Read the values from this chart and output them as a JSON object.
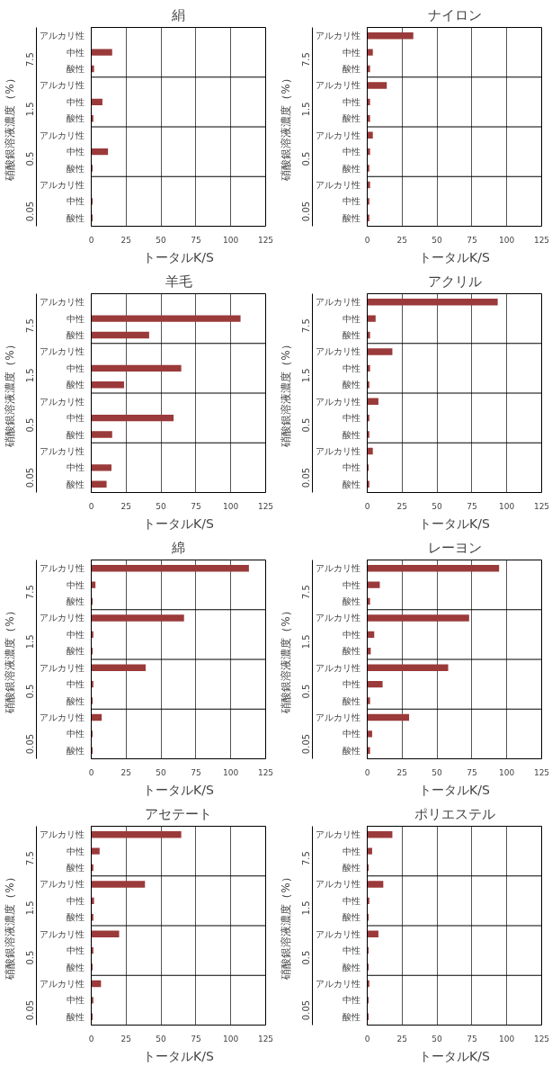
{
  "chart_data": [
    {
      "type": "bar",
      "orientation": "horizontal",
      "title": "絹",
      "xlabel": "トータルK/S",
      "ylabel": "硝酸銀溶液濃度（%）",
      "categories": [
        "アルカリ性",
        "中性",
        "酸性",
        "アルカリ性",
        "中性",
        "酸性",
        "アルカリ性",
        "中性",
        "酸性",
        "アルカリ性",
        "中性",
        "酸性"
      ],
      "annotations": [
        "7.5",
        "1.5",
        "0.5",
        "0.05"
      ],
      "color": "#9b3a3a",
      "values": [
        0,
        15,
        2,
        0,
        8,
        1.5,
        0,
        12,
        1,
        0,
        1,
        1
      ],
      "xlim": [
        0,
        125
      ],
      "xticks": [
        0,
        25,
        50,
        75,
        100,
        125
      ],
      "grid": "x"
    },
    {
      "type": "bar",
      "orientation": "horizontal",
      "title": "ナイロン",
      "xlabel": "トータルK/S",
      "ylabel": "硝酸銀溶液濃度（%）",
      "categories": [
        "アルカリ性",
        "中性",
        "酸性",
        "アルカリ性",
        "中性",
        "酸性",
        "アルカリ性",
        "中性",
        "酸性",
        "アルカリ性",
        "中性",
        "酸性"
      ],
      "annotations": [
        "7.5",
        "1.5",
        "0.5",
        "0.05"
      ],
      "color": "#9b3a3a",
      "values": [
        33,
        4,
        2,
        14,
        2,
        2,
        4,
        2,
        1.5,
        2,
        1.5,
        1.5
      ],
      "xlim": [
        0,
        125
      ],
      "xticks": [
        0,
        25,
        50,
        75,
        100,
        125
      ],
      "grid": "x"
    },
    {
      "type": "bar",
      "orientation": "horizontal",
      "title": "羊毛",
      "xlabel": "トータルK/S",
      "ylabel": "硝酸銀溶液濃度（%）",
      "categories": [
        "アルカリ性",
        "中性",
        "酸性",
        "アルカリ性",
        "中性",
        "酸性",
        "アルカリ性",
        "中性",
        "酸性",
        "アルカリ性",
        "中性",
        "酸性"
      ],
      "annotations": [
        "7.5",
        "1.5",
        "0.5",
        "0.05"
      ],
      "color": "#9b3a3a",
      "values": [
        0,
        107,
        41.5,
        0,
        64.5,
        23.5,
        0,
        59,
        15,
        0,
        14.5,
        11
      ],
      "xlim": [
        0,
        125
      ],
      "xticks": [
        0,
        25,
        50,
        75,
        100,
        125
      ],
      "grid": "x"
    },
    {
      "type": "bar",
      "orientation": "horizontal",
      "title": "アクリル",
      "xlabel": "トータルK/S",
      "ylabel": "硝酸銀溶液濃度（%）",
      "categories": [
        "アルカリ性",
        "中性",
        "酸性",
        "アルカリ性",
        "中性",
        "酸性",
        "アルカリ性",
        "中性",
        "酸性",
        "アルカリ性",
        "中性",
        "酸性"
      ],
      "annotations": [
        "7.5",
        "1.5",
        "0.5",
        "0.05"
      ],
      "color": "#9b3a3a",
      "values": [
        93.5,
        6,
        2,
        18,
        2,
        1.5,
        8,
        1.5,
        1.5,
        4,
        1,
        1.5
      ],
      "xlim": [
        0,
        125
      ],
      "xticks": [
        0,
        25,
        50,
        75,
        100,
        125
      ],
      "grid": "x"
    },
    {
      "type": "bar",
      "orientation": "horizontal",
      "title": "綿",
      "xlabel": "トータルK/S",
      "ylabel": "硝酸銀溶液濃度（%）",
      "categories": [
        "アルカリ性",
        "中性",
        "酸性",
        "アルカリ性",
        "中性",
        "酸性",
        "アルカリ性",
        "中性",
        "酸性",
        "アルカリ性",
        "中性",
        "酸性"
      ],
      "annotations": [
        "7.5",
        "1.5",
        "0.5",
        "0.05"
      ],
      "color": "#9b3a3a",
      "values": [
        113,
        3,
        1,
        66.5,
        1.5,
        1,
        39,
        1.5,
        1,
        7.5,
        1,
        1
      ],
      "xlim": [
        0,
        125
      ],
      "xticks": [
        0,
        25,
        50,
        75,
        100,
        125
      ],
      "grid": "x"
    },
    {
      "type": "bar",
      "orientation": "horizontal",
      "title": "レーヨン",
      "xlabel": "トータルK/S",
      "ylabel": "硝酸銀溶液濃度（%）",
      "categories": [
        "アルカリ性",
        "中性",
        "酸性",
        "アルカリ性",
        "中性",
        "酸性",
        "アルカリ性",
        "中性",
        "酸性",
        "アルカリ性",
        "中性",
        "酸性"
      ],
      "annotations": [
        "7.5",
        "1.5",
        "0.5",
        "0.05"
      ],
      "color": "#9b3a3a",
      "values": [
        94.5,
        9,
        2,
        73,
        5,
        2.5,
        58,
        11,
        2,
        30,
        3.5,
        2
      ],
      "xlim": [
        0,
        125
      ],
      "xticks": [
        0,
        25,
        50,
        75,
        100,
        125
      ],
      "grid": "x"
    },
    {
      "type": "bar",
      "orientation": "horizontal",
      "title": "アセテート",
      "xlabel": "トータルK/S",
      "ylabel": "硝酸銀溶液濃度（%）",
      "categories": [
        "アルカリ性",
        "中性",
        "酸性",
        "アルカリ性",
        "中性",
        "酸性",
        "アルカリ性",
        "中性",
        "酸性",
        "アルカリ性",
        "中性",
        "酸性"
      ],
      "annotations": [
        "7.5",
        "1.5",
        "0.5",
        "0.05"
      ],
      "color": "#9b3a3a",
      "values": [
        64.5,
        6,
        1.5,
        38.5,
        2,
        1.5,
        20,
        1.5,
        1,
        7,
        1.5,
        1
      ],
      "xlim": [
        0,
        125
      ],
      "xticks": [
        0,
        25,
        50,
        75,
        100,
        125
      ],
      "grid": "x"
    },
    {
      "type": "bar",
      "orientation": "horizontal",
      "title": "ポリエステル",
      "xlabel": "トータルK/S",
      "ylabel": "硝酸銀溶液濃度（%）",
      "categories": [
        "アルカリ性",
        "中性",
        "酸性",
        "アルカリ性",
        "中性",
        "酸性",
        "アルカリ性",
        "中性",
        "酸性",
        "アルカリ性",
        "中性",
        "酸性"
      ],
      "annotations": [
        "7.5",
        "1.5",
        "0.5",
        "0.05"
      ],
      "color": "#9b3a3a",
      "values": [
        18,
        3.5,
        1,
        11.5,
        1.5,
        1,
        8,
        1,
        1,
        1.5,
        1,
        1
      ],
      "xlim": [
        0,
        125
      ],
      "xticks": [
        0,
        25,
        50,
        75,
        100,
        125
      ],
      "grid": "x"
    }
  ]
}
